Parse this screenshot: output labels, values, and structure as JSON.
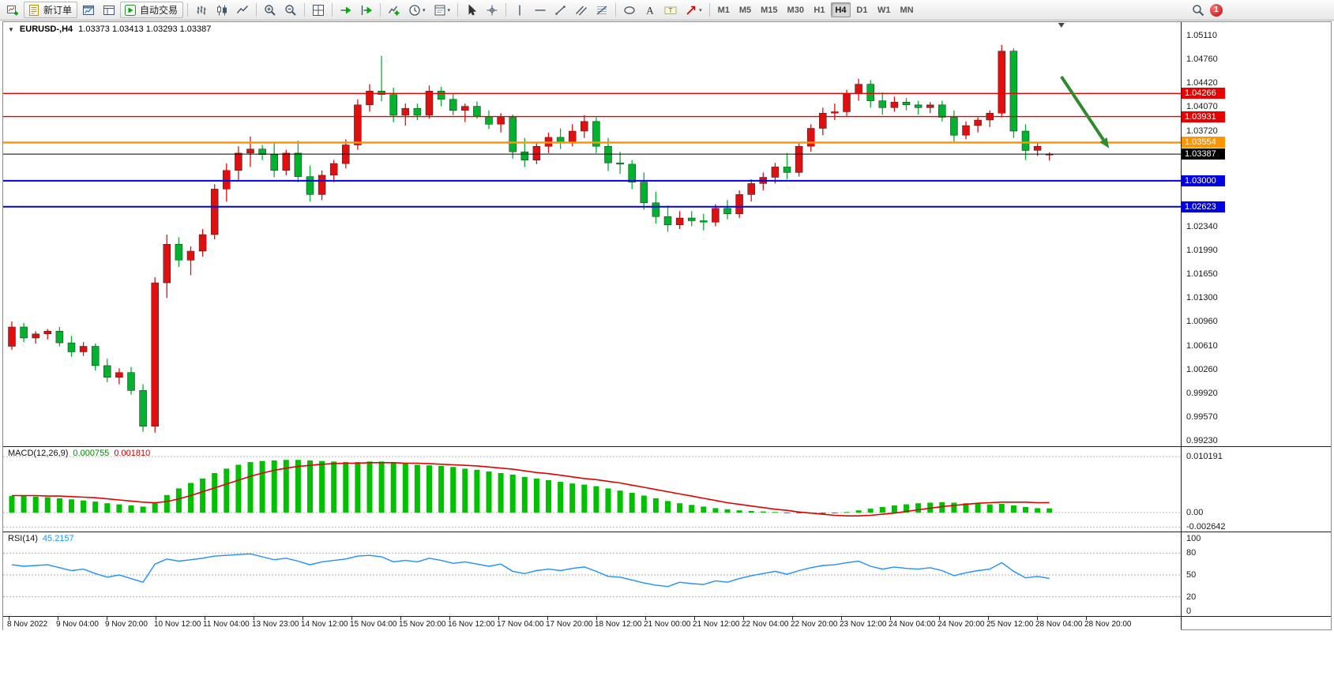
{
  "toolbar": {
    "buttons": [
      {
        "name": "new-chart",
        "icon": "new-chart-icon"
      },
      {
        "name": "new-order",
        "icon": "new-order-icon",
        "label": "新订单"
      },
      {
        "name": "market-watch",
        "icon": "market-watch-icon"
      },
      {
        "name": "data-window",
        "icon": "data-window-icon"
      },
      {
        "name": "autotrading",
        "icon": "autotrading-icon",
        "label": "自动交易"
      },
      {
        "sep": true
      },
      {
        "name": "bars-mode",
        "icon": "bars-mode-icon"
      },
      {
        "name": "candles-mode",
        "icon": "candles-mode-icon"
      },
      {
        "name": "line-mode",
        "icon": "line-mode-icon"
      },
      {
        "sep": true
      },
      {
        "name": "zoom-in",
        "icon": "zoom-in-icon"
      },
      {
        "name": "zoom-out",
        "icon": "zoom-out-icon"
      },
      {
        "sep": true
      },
      {
        "name": "tile-windows",
        "icon": "tile-windows-icon"
      },
      {
        "sep": true
      },
      {
        "name": "auto-scroll",
        "icon": "auto-scroll-icon"
      },
      {
        "name": "chart-shift",
        "icon": "chart-shift-icon"
      },
      {
        "sep": true
      },
      {
        "name": "indicators",
        "icon": "indicators-icon"
      },
      {
        "name": "periods",
        "icon": "periods-icon",
        "dropdown": true
      },
      {
        "name": "templates",
        "icon": "templates-icon",
        "dropdown": true
      },
      {
        "sep": true
      },
      {
        "name": "cursor",
        "icon": "cursor-icon"
      },
      {
        "name": "crosshair",
        "icon": "crosshair-icon"
      },
      {
        "sep": true
      },
      {
        "name": "vertical-line",
        "icon": "vline-icon"
      },
      {
        "name": "horizontal-line",
        "icon": "hline-icon"
      },
      {
        "name": "trendline",
        "icon": "trendline-icon"
      },
      {
        "name": "channel",
        "icon": "channel-icon"
      },
      {
        "name": "fibonacci",
        "icon": "fibonacci-icon"
      },
      {
        "sep": true
      },
      {
        "name": "shapes",
        "icon": "shapes-icon"
      },
      {
        "name": "text",
        "icon": "text-icon"
      },
      {
        "name": "text-label",
        "icon": "text-label-icon"
      },
      {
        "name": "arrows",
        "icon": "arrow-tool-icon",
        "dropdown": true
      },
      {
        "sep": true
      }
    ],
    "timeframes": [
      {
        "label": "M1"
      },
      {
        "label": "M5"
      },
      {
        "label": "M15"
      },
      {
        "label": "M30"
      },
      {
        "label": "H1"
      },
      {
        "label": "H4",
        "active": true
      },
      {
        "label": "D1"
      },
      {
        "label": "W1"
      },
      {
        "label": "MN"
      }
    ],
    "search_badge": "1"
  },
  "header": {
    "symbol": "EURUSD-,H4",
    "ohlc": "1.03373 1.03413 1.03293 1.03387"
  },
  "chart_data": {
    "type": "candlestick",
    "symbol": "EURUSD-",
    "period": "H4",
    "candles": [
      [
        1.006,
        1.0096,
        1.0055,
        1.0088
      ],
      [
        1.0088,
        1.0094,
        1.0066,
        1.0072
      ],
      [
        1.0072,
        1.0082,
        1.0064,
        1.0078
      ],
      [
        1.0078,
        1.0085,
        1.007,
        1.0082
      ],
      [
        1.0082,
        1.0088,
        1.006,
        1.0065
      ],
      [
        1.0065,
        1.0075,
        1.0045,
        1.0052
      ],
      [
        1.0052,
        1.0066,
        1.0046,
        1.006
      ],
      [
        1.006,
        1.0064,
        1.0025,
        1.0032
      ],
      [
        1.0032,
        1.0042,
        1.0008,
        1.0015
      ],
      [
        1.0015,
        1.0028,
        1.0005,
        1.0022
      ],
      [
        1.0022,
        1.003,
        0.999,
        0.9996
      ],
      [
        0.9996,
        1.0005,
        0.9936,
        0.9944
      ],
      [
        0.9944,
        1.016,
        0.9935,
        1.0152
      ],
      [
        1.0152,
        1.0222,
        1.013,
        1.0208
      ],
      [
        1.0208,
        1.0218,
        1.0175,
        1.0185
      ],
      [
        1.0185,
        1.0205,
        1.0163,
        1.0198
      ],
      [
        1.0198,
        1.023,
        1.019,
        1.0222
      ],
      [
        1.0222,
        1.0295,
        1.0215,
        1.0288
      ],
      [
        1.0288,
        1.0325,
        1.027,
        1.0315
      ],
      [
        1.0315,
        1.035,
        1.03,
        1.034
      ],
      [
        1.034,
        1.0364,
        1.032,
        1.0346
      ],
      [
        1.0346,
        1.0352,
        1.033,
        1.0338
      ],
      [
        1.0338,
        1.0355,
        1.0305,
        1.0315
      ],
      [
        1.0315,
        1.0345,
        1.0308,
        1.034
      ],
      [
        1.034,
        1.0358,
        1.0298,
        1.0306
      ],
      [
        1.0306,
        1.0322,
        1.027,
        1.028
      ],
      [
        1.028,
        1.0315,
        1.0272,
        1.0308
      ],
      [
        1.0308,
        1.033,
        1.0298,
        1.0325
      ],
      [
        1.0325,
        1.036,
        1.0318,
        1.0352
      ],
      [
        1.0352,
        1.0418,
        1.0345,
        1.041
      ],
      [
        1.041,
        1.044,
        1.04,
        1.043
      ],
      [
        1.043,
        1.0481,
        1.0415,
        1.0425
      ],
      [
        1.0425,
        1.0435,
        1.0385,
        1.0395
      ],
      [
        1.0395,
        1.0412,
        1.038,
        1.0405
      ],
      [
        1.0405,
        1.0412,
        1.0388,
        1.0395
      ],
      [
        1.0395,
        1.0438,
        1.039,
        1.043
      ],
      [
        1.043,
        1.0436,
        1.0408,
        1.0418
      ],
      [
        1.0418,
        1.0426,
        1.0395,
        1.0402
      ],
      [
        1.0402,
        1.0412,
        1.0385,
        1.0408
      ],
      [
        1.0408,
        1.0415,
        1.039,
        1.0393
      ],
      [
        1.0393,
        1.0402,
        1.0375,
        1.0382
      ],
      [
        1.0382,
        1.0398,
        1.037,
        1.0392
      ],
      [
        1.0392,
        1.0396,
        1.0332,
        1.0342
      ],
      [
        1.0342,
        1.0362,
        1.032,
        1.033
      ],
      [
        1.033,
        1.0356,
        1.0324,
        1.035
      ],
      [
        1.035,
        1.037,
        1.034,
        1.0363
      ],
      [
        1.0363,
        1.0376,
        1.0346,
        1.0356
      ],
      [
        1.0356,
        1.0382,
        1.035,
        1.0372
      ],
      [
        1.0372,
        1.0395,
        1.0362,
        1.0386
      ],
      [
        1.0386,
        1.0392,
        1.034,
        1.035
      ],
      [
        1.035,
        1.0362,
        1.0314,
        1.0326
      ],
      [
        1.0326,
        1.0342,
        1.031,
        1.0324
      ],
      [
        1.0324,
        1.033,
        1.0288,
        1.0298
      ],
      [
        1.0298,
        1.0312,
        1.0258,
        1.0268
      ],
      [
        1.0268,
        1.0284,
        1.0238,
        1.0248
      ],
      [
        1.0248,
        1.0264,
        1.0226,
        1.0236
      ],
      [
        1.0236,
        1.0256,
        1.023,
        1.0246
      ],
      [
        1.0246,
        1.0256,
        1.0234,
        1.0242
      ],
      [
        1.0242,
        1.0252,
        1.0228,
        1.024
      ],
      [
        1.024,
        1.0266,
        1.0234,
        1.026
      ],
      [
        1.026,
        1.0272,
        1.0244,
        1.0252
      ],
      [
        1.0252,
        1.0286,
        1.0246,
        1.028
      ],
      [
        1.028,
        1.0302,
        1.027,
        1.0296
      ],
      [
        1.0296,
        1.0312,
        1.0286,
        1.0305
      ],
      [
        1.0305,
        1.0326,
        1.0296,
        1.032
      ],
      [
        1.032,
        1.034,
        1.0302,
        1.0312
      ],
      [
        1.0312,
        1.0356,
        1.0306,
        1.035
      ],
      [
        1.035,
        1.0382,
        1.0342,
        1.0376
      ],
      [
        1.0376,
        1.0406,
        1.0366,
        1.0398
      ],
      [
        1.0398,
        1.0412,
        1.0388,
        1.04
      ],
      [
        1.04,
        1.0432,
        1.0394,
        1.0426
      ],
      [
        1.0426,
        1.0448,
        1.0416,
        1.044
      ],
      [
        1.044,
        1.0446,
        1.0406,
        1.0416
      ],
      [
        1.0416,
        1.0428,
        1.0396,
        1.0406
      ],
      [
        1.0406,
        1.0422,
        1.04,
        1.0414
      ],
      [
        1.0414,
        1.042,
        1.0402,
        1.041
      ],
      [
        1.041,
        1.0416,
        1.0396,
        1.0406
      ],
      [
        1.0406,
        1.0414,
        1.0398,
        1.041
      ],
      [
        1.041,
        1.0416,
        1.0386,
        1.0392
      ],
      [
        1.0392,
        1.0402,
        1.0356,
        1.0366
      ],
      [
        1.0366,
        1.0386,
        1.036,
        1.038
      ],
      [
        1.038,
        1.0392,
        1.037,
        1.0388
      ],
      [
        1.0388,
        1.0402,
        1.0378,
        1.0398
      ],
      [
        1.0398,
        1.0497,
        1.0392,
        1.0488
      ],
      [
        1.0488,
        1.0492,
        1.0362,
        1.0372
      ],
      [
        1.0372,
        1.0382,
        1.033,
        1.0344
      ],
      [
        1.0344,
        1.0356,
        1.0336,
        1.035
      ],
      [
        1.03373,
        1.03413,
        1.03293,
        1.03387
      ]
    ],
    "time_labels": [
      "8 Nov 2022",
      "9 Nov 04:00",
      "9 Nov 20:00",
      "10 Nov 12:00",
      "11 Nov 04:00",
      "13 Nov 23:00",
      "14 Nov 12:00",
      "15 Nov 04:00",
      "15 Nov 20:00",
      "16 Nov 12:00",
      "17 Nov 04:00",
      "17 Nov 20:00",
      "18 Nov 12:00",
      "21 Nov 00:00",
      "21 Nov 12:00",
      "22 Nov 04:00",
      "22 Nov 20:00",
      "23 Nov 12:00",
      "24 Nov 04:00",
      "24 Nov 20:00",
      "25 Nov 12:00",
      "28 Nov 04:00",
      "28 Nov 20:00"
    ],
    "price_axis_labels": [
      "1.05110",
      "1.04760",
      "1.04420",
      "1.04070",
      "1.03720",
      "1.02340",
      "1.01990",
      "1.01650",
      "1.01300",
      "1.00960",
      "1.00610",
      "1.00260",
      "0.99920",
      "0.99570",
      "0.99230"
    ],
    "badges": [
      {
        "text": "1.04266",
        "color": "#e80000"
      },
      {
        "text": "1.03931",
        "color": "#e80000"
      },
      {
        "text": "1.03554",
        "color": "#ff9500"
      },
      {
        "text": "1.03387",
        "color": "#000000"
      },
      {
        "text": "1.03000",
        "color": "#0000e0"
      },
      {
        "text": "1.02623",
        "color": "#0000e0"
      }
    ],
    "hlines": [
      {
        "price": 1.04266,
        "color": "#e80000",
        "width": 1.4
      },
      {
        "price": 1.03931,
        "color": "#e80000",
        "width": 1.4
      },
      {
        "price": 1.03554,
        "color": "#ff9500",
        "width": 2.6
      },
      {
        "price": 1.03,
        "color": "#0000e0",
        "width": 2
      },
      {
        "price": 1.02623,
        "color": "#0000e0",
        "width": 2
      }
    ],
    "price_line": {
      "price": 1.03387,
      "color": "#000000"
    },
    "shift_marker_index": 88,
    "arrow": {
      "from_index": 88,
      "from_price": 1.0451,
      "to_index": 92,
      "to_price": 1.0347
    },
    "macd": {
      "name": "MACD(12,26,9)",
      "value_main": "0.000755",
      "value_signal": "0.001810",
      "axis": [
        "0.010191",
        "0.00",
        "-0.002642"
      ],
      "histogram": [
        0.003,
        0.003,
        0.0029,
        0.0028,
        0.0026,
        0.0024,
        0.0022,
        0.002,
        0.0017,
        0.0015,
        0.0013,
        0.0011,
        0.0018,
        0.0032,
        0.0044,
        0.0054,
        0.0062,
        0.0072,
        0.008,
        0.0087,
        0.0092,
        0.0094,
        0.0095,
        0.0096,
        0.0096,
        0.0095,
        0.0094,
        0.0093,
        0.0092,
        0.0092,
        0.0093,
        0.0093,
        0.0091,
        0.0089,
        0.0087,
        0.0086,
        0.0085,
        0.0083,
        0.008,
        0.0078,
        0.0075,
        0.0072,
        0.0069,
        0.0065,
        0.0062,
        0.0059,
        0.0056,
        0.0053,
        0.0051,
        0.0048,
        0.0044,
        0.004,
        0.0036,
        0.0031,
        0.0026,
        0.0021,
        0.0017,
        0.0014,
        0.0011,
        0.0008,
        0.0006,
        0.0004,
        0.0003,
        0.0002,
        0.0001,
        0.0,
        -0.0001,
        -0.0002,
        -0.0002,
        -0.0001,
        0.0001,
        0.0004,
        0.0007,
        0.001,
        0.0013,
        0.0015,
        0.0017,
        0.0018,
        0.0019,
        0.0018,
        0.0017,
        0.0016,
        0.0015,
        0.0016,
        0.0013,
        0.001,
        0.0008,
        0.00076
      ],
      "signal": [
        0.0031,
        0.0031,
        0.0031,
        0.003,
        0.003,
        0.0029,
        0.0028,
        0.0027,
        0.0025,
        0.0023,
        0.0021,
        0.0019,
        0.0018,
        0.002,
        0.0025,
        0.0031,
        0.0038,
        0.0045,
        0.0052,
        0.0059,
        0.0066,
        0.0072,
        0.0077,
        0.0081,
        0.0084,
        0.0086,
        0.0088,
        0.0089,
        0.009,
        0.009,
        0.0091,
        0.0091,
        0.0091,
        0.009,
        0.009,
        0.0089,
        0.0088,
        0.0087,
        0.0086,
        0.0085,
        0.0083,
        0.0081,
        0.0079,
        0.0076,
        0.0073,
        0.0071,
        0.0068,
        0.0065,
        0.0062,
        0.006,
        0.0057,
        0.0054,
        0.005,
        0.0046,
        0.0042,
        0.0038,
        0.0034,
        0.003,
        0.0026,
        0.0022,
        0.0018,
        0.0015,
        0.0012,
        0.0009,
        0.0006,
        0.0004,
        0.0001,
        -0.0001,
        -0.0003,
        -0.0005,
        -0.0006,
        -0.0006,
        -0.0005,
        -0.0003,
        -0.0001,
        0.0002,
        0.0005,
        0.0008,
        0.0011,
        0.0013,
        0.0015,
        0.0017,
        0.0018,
        0.0019,
        0.0019,
        0.0019,
        0.0018,
        0.00181
      ]
    },
    "rsi": {
      "name": "RSI(14)",
      "value": "45.2157",
      "axis": [
        "100",
        "80",
        "50",
        "20",
        "0"
      ],
      "levels": [
        80,
        50,
        20
      ],
      "series": [
        64,
        62,
        63,
        64,
        60,
        56,
        58,
        52,
        47,
        50,
        45,
        40,
        65,
        72,
        69,
        71,
        73,
        76,
        77,
        78,
        79,
        75,
        71,
        73,
        69,
        64,
        68,
        70,
        72,
        76,
        77,
        75,
        68,
        70,
        68,
        73,
        70,
        66,
        68,
        65,
        62,
        65,
        55,
        52,
        56,
        58,
        56,
        59,
        61,
        55,
        48,
        47,
        43,
        39,
        36,
        34,
        40,
        38,
        37,
        42,
        40,
        45,
        49,
        52,
        55,
        51,
        56,
        60,
        63,
        64,
        67,
        69,
        62,
        58,
        61,
        59,
        58,
        60,
        56,
        49,
        53,
        56,
        58,
        67,
        55,
        46,
        48,
        45.2157
      ]
    },
    "colors": {
      "up": "#e01010",
      "down": "#00b22d",
      "macd_hist": "#00c000",
      "macd_signal": "#e00000",
      "rsi_line": "#1e90ff",
      "arrow": "#2e8b2e"
    }
  }
}
